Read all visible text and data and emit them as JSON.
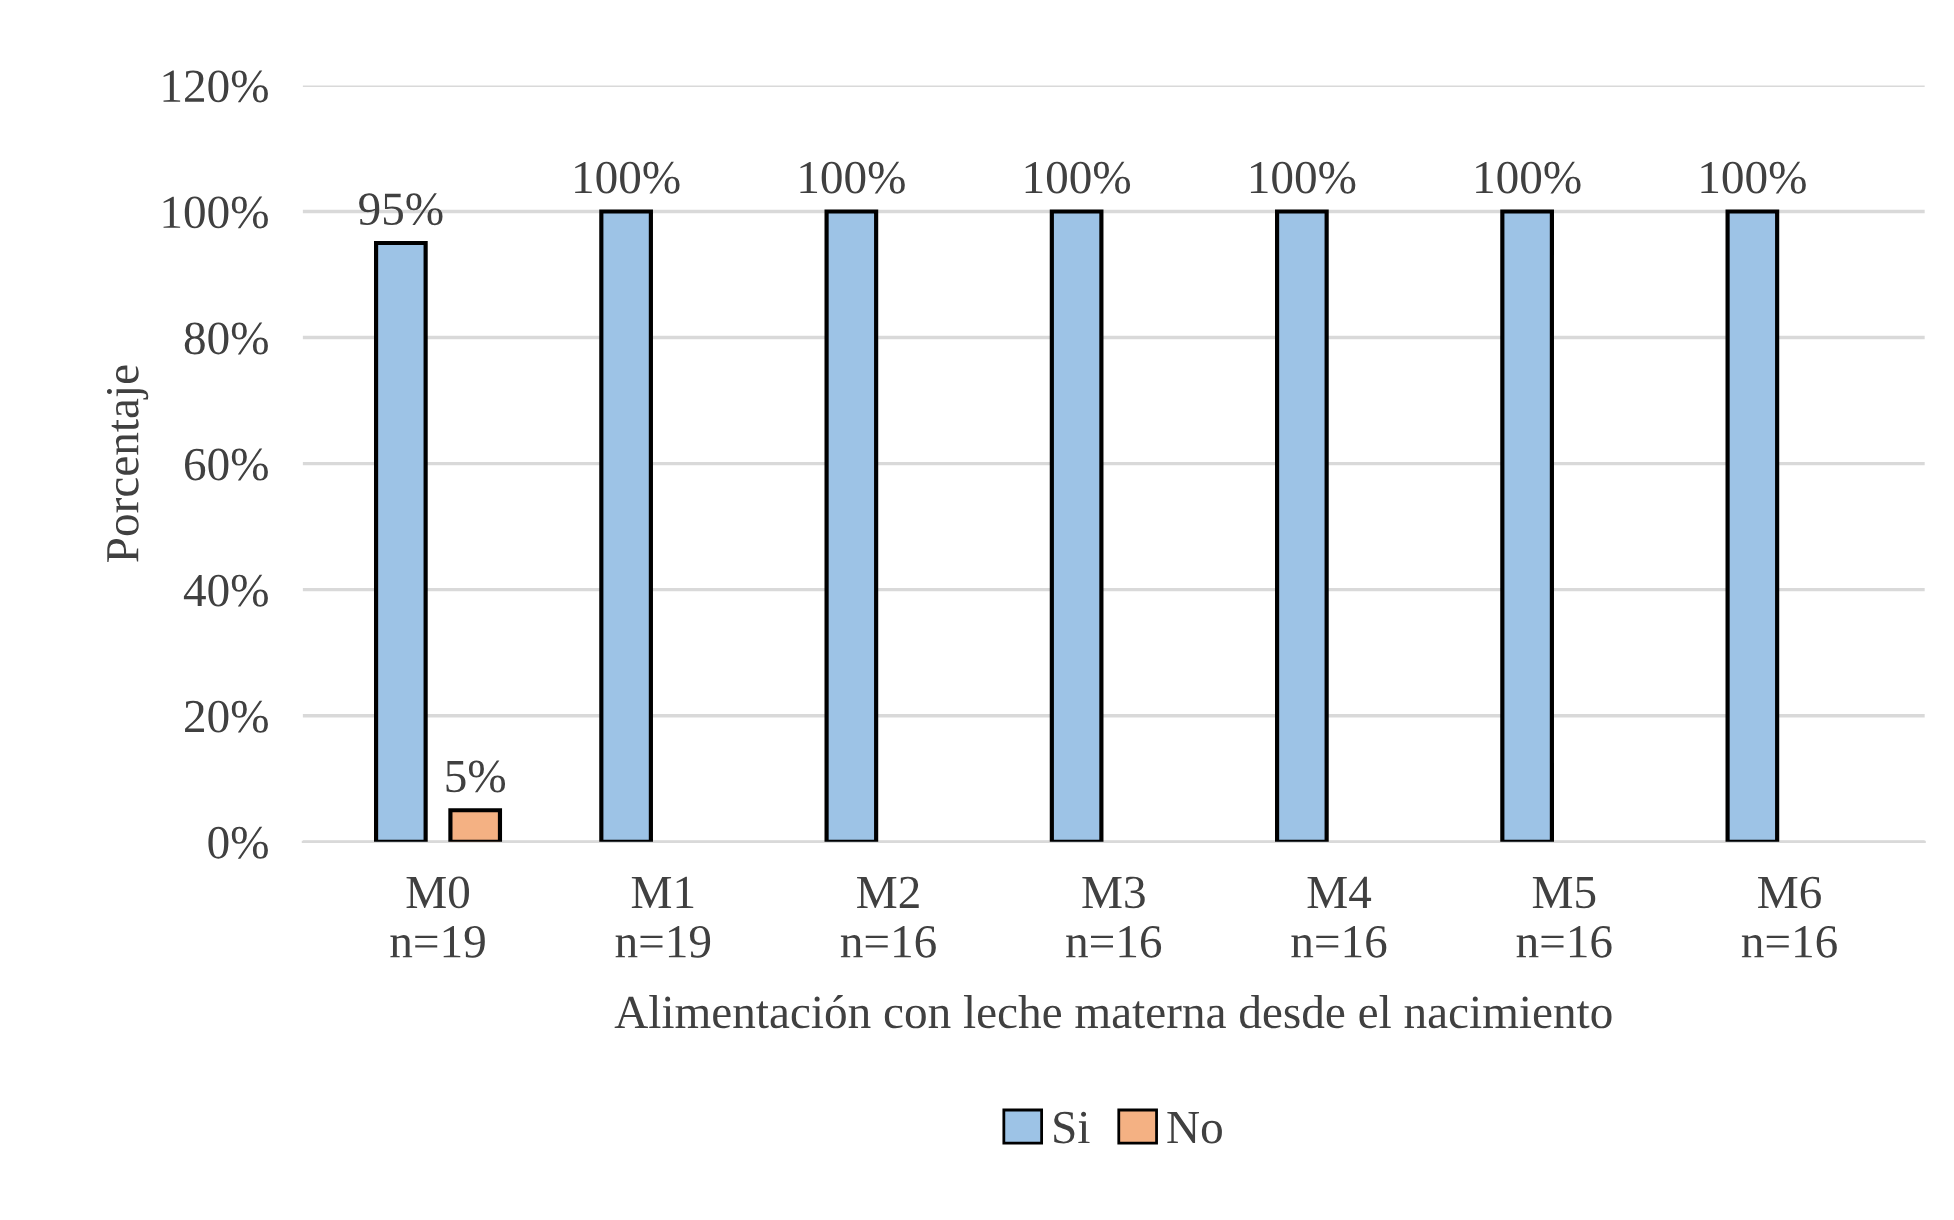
{
  "chart_data": {
    "type": "bar",
    "xlabel": "Alimentación con leche materna desde el nacimiento",
    "ylabel": "Porcentaje",
    "categories": [
      "M0\nn=19",
      "M1\nn=19",
      "M2\nn=16",
      "M3\nn=16",
      "M4\nn=16",
      "M5\nn=16",
      "M6\nn=16"
    ],
    "series": [
      {
        "name": "Si",
        "color": "#9dc3e6",
        "values": [
          95,
          100,
          100,
          100,
          100,
          100,
          100
        ],
        "value_labels": [
          "95%",
          "100%",
          "100%",
          "100%",
          "100%",
          "100%",
          "100%"
        ]
      },
      {
        "name": "No",
        "color": "#f4b183",
        "values": [
          5,
          null,
          null,
          null,
          null,
          null,
          null
        ],
        "value_labels": [
          "5%",
          null,
          null,
          null,
          null,
          null,
          null
        ]
      }
    ],
    "ylim": [
      0,
      120
    ],
    "yticks": [
      {
        "value": 0,
        "label": "0%"
      },
      {
        "value": 20,
        "label": "20%"
      },
      {
        "value": 40,
        "label": "40%"
      },
      {
        "value": 60,
        "label": "60%"
      },
      {
        "value": 80,
        "label": "80%"
      },
      {
        "value": 100,
        "label": "100%"
      },
      {
        "value": 120,
        "label": "120%"
      }
    ],
    "grid": "y",
    "legend": "bottom"
  }
}
